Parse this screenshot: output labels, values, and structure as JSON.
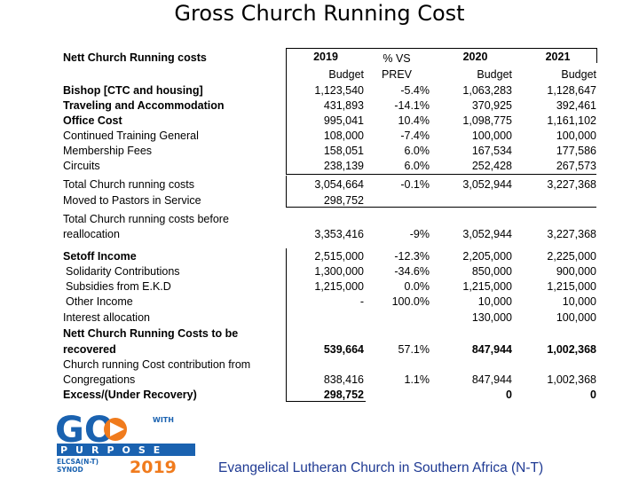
{
  "title": "Gross Church Running Cost",
  "header": {
    "row_label": "Nett Church Running costs",
    "col1": {
      "year": "2019",
      "sub": "Budget"
    },
    "col2": {
      "line1": "% VS",
      "line2": "PREV"
    },
    "col3": {
      "year": "2020",
      "sub": "Budget"
    },
    "col4": {
      "year": "2021",
      "sub": "Budget"
    }
  },
  "rows": [
    {
      "label": "Bishop [CTC and housing]",
      "v2019": "1,123,540",
      "pct": "-5.4%",
      "v2020": "1,063,283",
      "v2021": "1,128,647"
    },
    {
      "label": "Traveling and Accommodation",
      "v2019": "431,893",
      "pct": "-14.1%",
      "v2020": "370,925",
      "v2021": "392,461"
    },
    {
      "label": "Office Cost",
      "v2019": "995,041",
      "pct": "10.4%",
      "v2020": "1,098,775",
      "v2021": "1,161,102"
    },
    {
      "label": "Continued Training General",
      "v2019": "108,000",
      "pct": "-7.4%",
      "v2020": "100,000",
      "v2021": "100,000"
    },
    {
      "label": "Membership Fees",
      "v2019": "158,051",
      "pct": "6.0%",
      "v2020": "167,534",
      "v2021": "177,586"
    },
    {
      "label": "Circuits",
      "v2019": "238,139",
      "pct": "6.0%",
      "v2020": "252,428",
      "v2021": "267,573"
    },
    {
      "label": "Total Church running costs",
      "v2019": "3,054,664",
      "pct": "-0.1%",
      "v2020": "3,052,944",
      "v2021": "3,227,368"
    },
    {
      "label": "Moved to Pastors in Service",
      "v2019": "298,752",
      "pct": "",
      "v2020": "",
      "v2021": ""
    },
    {
      "label": "Total Church running costs before",
      "label2": "reallocation",
      "v2019": "3,353,416",
      "pct": "-9%",
      "v2020": "3,052,944",
      "v2021": "3,227,368"
    },
    {
      "label": "Setoff Income",
      "v2019": "2,515,000",
      "pct": "-12.3%",
      "v2020": "2,205,000",
      "v2021": "2,225,000"
    },
    {
      "label": "Solidarity Contributions",
      "v2019": "1,300,000",
      "pct": "-34.6%",
      "v2020": "850,000",
      "v2021": "900,000"
    },
    {
      "label": "Subsidies from E.K.D",
      "v2019": "1,215,000",
      "pct": "0.0%",
      "v2020": "1,215,000",
      "v2021": "1,215,000"
    },
    {
      "label": "Other Income",
      "v2019": "-",
      "pct": "100.0%",
      "v2020": "10,000",
      "v2021": "10,000"
    },
    {
      "label": "Interest allocation",
      "v2019": "",
      "pct": "",
      "v2020": "130,000",
      "v2021": "100,000"
    },
    {
      "label": "Nett Church Running Costs to be",
      "label2": "recovered",
      "v2019": "539,664",
      "pct": "57.1%",
      "v2020": "847,944",
      "v2021": "1,002,368"
    },
    {
      "label": "Church running Cost contribution from",
      "label2": "Congregations",
      "v2019": "838,416",
      "pct": "1.1%",
      "v2020": "847,944",
      "v2021": "1,002,368"
    },
    {
      "label": "Excess/(Under Recovery)",
      "v2019": "298,752",
      "pct": "",
      "v2020": "0",
      "v2021": "0"
    }
  ],
  "footer": "Evangelical Lutheran Church in Southern Africa (N-T)",
  "logo": {
    "line1": "GO",
    "line2": "WITH",
    "line3": "PURPOSE",
    "line4": "ELCSA(N-T)",
    "line5": "SYNOD",
    "line6": "2019",
    "color_blue": "#1a62b0",
    "color_orange": "#f07b1d"
  },
  "colors": {
    "footer_text": "#1f3a93"
  }
}
